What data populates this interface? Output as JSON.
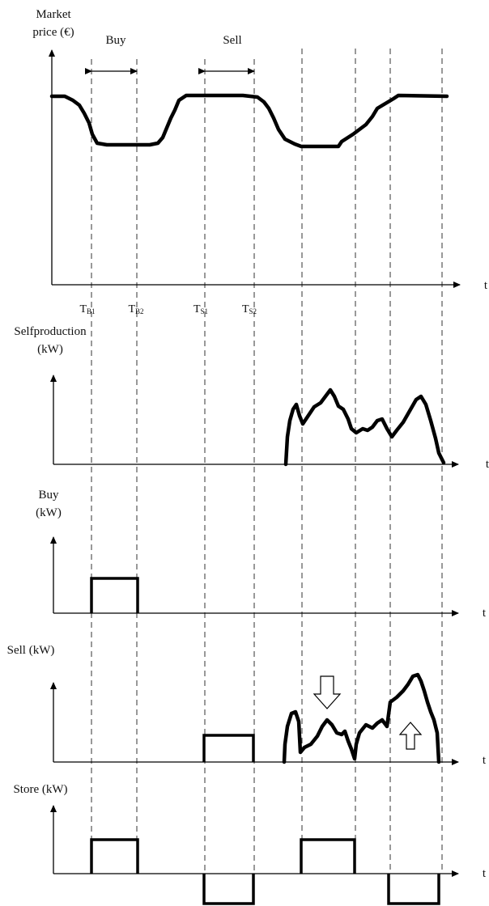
{
  "diagram": {
    "panels": {
      "price": {
        "ylabel_line1": "Market",
        "ylabel_line2": "price (€)",
        "xlabel": "t"
      },
      "selfproduction": {
        "ylabel_line1": "Selfproduction",
        "ylabel_line2": "(kW)",
        "xlabel": "t"
      },
      "buy": {
        "ylabel_line1": "Buy",
        "ylabel_line2": "(kW)",
        "xlabel": "t"
      },
      "sell": {
        "ylabel_line1": "Sell (kW)",
        "xlabel": "t"
      },
      "store": {
        "ylabel_line1": "Store (kW)",
        "xlabel": "t"
      }
    },
    "intervals": {
      "buy_label": "Buy",
      "sell_label": "Sell"
    },
    "ticks": [
      {
        "main": "T",
        "sub": "B1"
      },
      {
        "main": "T",
        "sub": "B2"
      },
      {
        "main": "T",
        "sub": "S1"
      },
      {
        "main": "T",
        "sub": "S2"
      }
    ],
    "arrow_icons": [
      "hollow-down-arrow-icon",
      "hollow-up-arrow-icon"
    ],
    "stroke_color": "#000000"
  }
}
